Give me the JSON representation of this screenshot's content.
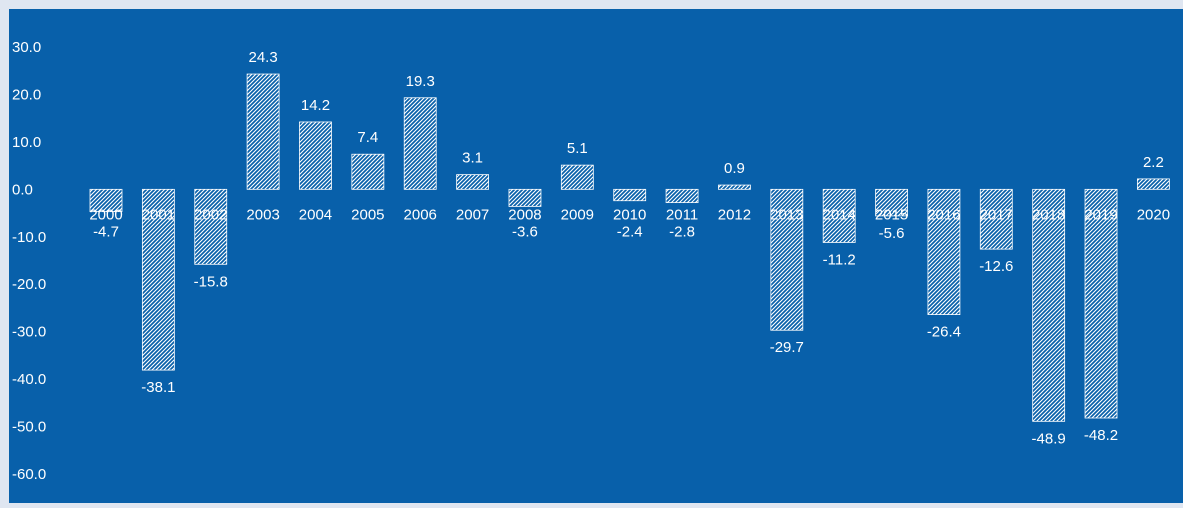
{
  "chart_data": {
    "type": "bar",
    "categories": [
      "2000",
      "2001",
      "2002",
      "2003",
      "2004",
      "2005",
      "2006",
      "2007",
      "2008",
      "2009",
      "2010",
      "2011",
      "2012",
      "2013",
      "2014",
      "2015",
      "2016",
      "2017",
      "2018",
      "2019",
      "2020"
    ],
    "values": [
      -4.7,
      -38.1,
      -15.8,
      24.3,
      14.2,
      7.4,
      19.3,
      3.1,
      -3.6,
      5.1,
      -2.4,
      -2.8,
      0.9,
      -29.7,
      -11.2,
      -5.6,
      -26.4,
      -12.6,
      -48.9,
      -48.2,
      2.2
    ],
    "data_labels": [
      "-4.7",
      "-38.1",
      "-15.8",
      "24.3",
      "14.2",
      "7.4",
      "19.3",
      "3.1",
      "-3.6",
      "5.1",
      "-2.4",
      "-2.8",
      "0.9",
      "-29.7",
      "-11.2",
      "-5.6",
      "-26.4",
      "-12.6",
      "-48.9",
      "-48.2",
      "2.2"
    ],
    "y_ticks": [
      "30.0",
      "20.0",
      "10.0",
      "0.0",
      "-10.0",
      "-20.0",
      "-30.0",
      "-40.0",
      "-50.0",
      "-60.0"
    ],
    "ylim": [
      -60,
      30
    ],
    "grid": false,
    "legend": "none",
    "bar_fill": "hatched",
    "colors": {
      "background": "#0860aa",
      "outer_background": "#dfe6f1",
      "bar": "#ffffff",
      "text": "#ffffff"
    }
  }
}
